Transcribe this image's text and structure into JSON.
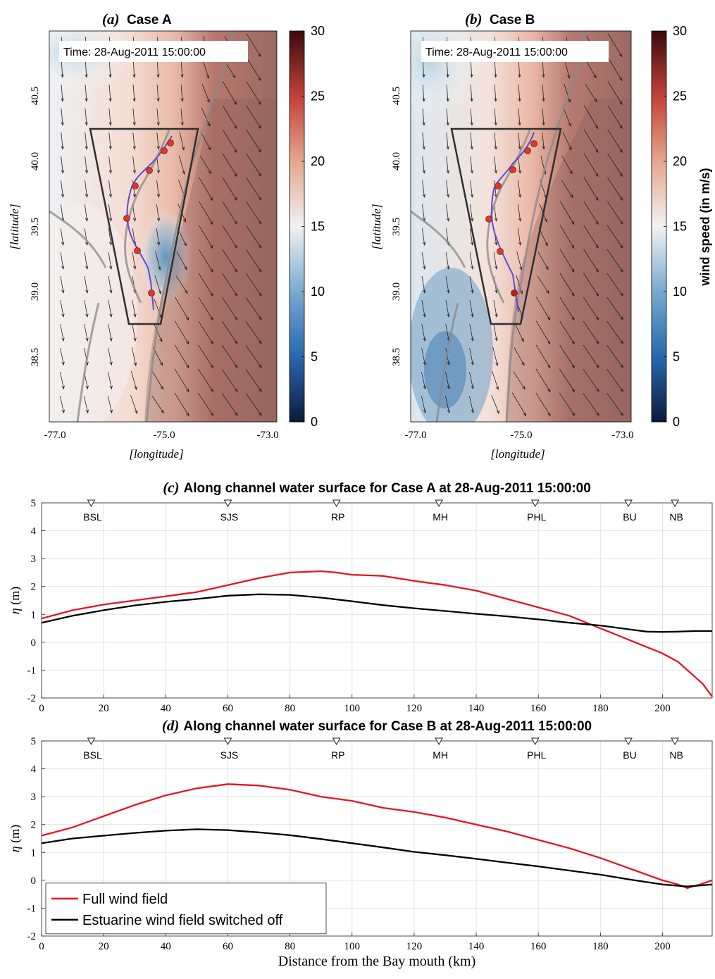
{
  "panels": {
    "a": {
      "letter": "(a)",
      "title": "Case A",
      "time": "Time: 28-Aug-2011 15:00:00"
    },
    "b": {
      "letter": "(b)",
      "title": "Case B",
      "time": "Time: 28-Aug-2011 15:00:00"
    },
    "map_xticks": [
      "-77.0",
      "-75.0",
      "-73.0"
    ],
    "map_yticks": [
      "38.5",
      "39.0",
      "39.5",
      "40.0",
      "40.5"
    ],
    "map_xlabel": "[longitude]",
    "map_ylabel": "[latitude]",
    "colorbar": {
      "label": "wind speed (in m/s)",
      "ticks": [
        "0",
        "5",
        "10",
        "15",
        "20",
        "25",
        "30"
      ]
    }
  },
  "colors": {
    "full_wind": "#e8141e",
    "estuarine_off": "#000000",
    "channel": "#5a4bd6",
    "station_dot": "#d83a2e",
    "box": "#333333"
  },
  "chart_data": [
    {
      "type": "line",
      "panel": "c",
      "letter": "(c)",
      "title": "Along channel water surface for Case A at 28-Aug-2011 15:00:00",
      "xlabel": "",
      "ylabel": "η (m)",
      "xlim": [
        0,
        216
      ],
      "ylim": [
        -2,
        5
      ],
      "xticks": [
        0,
        20,
        40,
        60,
        80,
        100,
        120,
        140,
        160,
        180,
        200
      ],
      "yticks": [
        -2,
        -1,
        0,
        1,
        2,
        3,
        4,
        5
      ],
      "grid": true,
      "stations": [
        {
          "name": "BSL",
          "x": 16
        },
        {
          "name": "SJS",
          "x": 60
        },
        {
          "name": "RP",
          "x": 95
        },
        {
          "name": "MH",
          "x": 128
        },
        {
          "name": "PHL",
          "x": 159
        },
        {
          "name": "BU",
          "x": 189
        },
        {
          "name": "NB",
          "x": 204
        }
      ],
      "series": [
        {
          "name": "Full wind field",
          "x": [
            0,
            10,
            20,
            30,
            40,
            50,
            60,
            70,
            80,
            90,
            95,
            100,
            105,
            110,
            120,
            130,
            140,
            150,
            160,
            170,
            180,
            190,
            200,
            205,
            210,
            213,
            216
          ],
          "y": [
            0.85,
            1.15,
            1.35,
            1.5,
            1.65,
            1.8,
            2.05,
            2.3,
            2.5,
            2.55,
            2.5,
            2.42,
            2.4,
            2.38,
            2.2,
            2.05,
            1.85,
            1.55,
            1.25,
            0.95,
            0.5,
            0.05,
            -0.4,
            -0.7,
            -1.2,
            -1.5,
            -1.95
          ]
        },
        {
          "name": "Estuarine wind field switched off",
          "x": [
            0,
            10,
            20,
            30,
            40,
            50,
            60,
            70,
            80,
            90,
            100,
            110,
            120,
            130,
            140,
            150,
            160,
            170,
            180,
            190,
            195,
            200,
            205,
            210,
            216
          ],
          "y": [
            0.7,
            0.95,
            1.15,
            1.32,
            1.45,
            1.55,
            1.67,
            1.72,
            1.7,
            1.6,
            1.47,
            1.33,
            1.22,
            1.12,
            1.02,
            0.93,
            0.82,
            0.7,
            0.6,
            0.45,
            0.38,
            0.37,
            0.38,
            0.4,
            0.4
          ]
        }
      ]
    },
    {
      "type": "line",
      "panel": "d",
      "letter": "(d)",
      "title": "Along channel water surface for Case B at 28-Aug-2011 15:00:00",
      "xlabel": "Distance from the Bay mouth (km)",
      "ylabel": "η (m)",
      "xlim": [
        0,
        216
      ],
      "ylim": [
        -2,
        5
      ],
      "xticks": [
        0,
        20,
        40,
        60,
        80,
        100,
        120,
        140,
        160,
        180,
        200
      ],
      "yticks": [
        -2,
        -1,
        0,
        1,
        2,
        3,
        4,
        5
      ],
      "grid": true,
      "legend": "lower-left",
      "stations": [
        {
          "name": "BSL",
          "x": 16
        },
        {
          "name": "SJS",
          "x": 60
        },
        {
          "name": "RP",
          "x": 95
        },
        {
          "name": "MH",
          "x": 128
        },
        {
          "name": "PHL",
          "x": 159
        },
        {
          "name": "BU",
          "x": 189
        },
        {
          "name": "NB",
          "x": 204
        }
      ],
      "series": [
        {
          "name": "Full wind field",
          "x": [
            0,
            10,
            20,
            30,
            40,
            50,
            60,
            70,
            80,
            90,
            100,
            110,
            120,
            130,
            140,
            150,
            160,
            170,
            180,
            190,
            200,
            205,
            208,
            212,
            216
          ],
          "y": [
            1.6,
            1.9,
            2.3,
            2.7,
            3.05,
            3.3,
            3.45,
            3.4,
            3.25,
            3.0,
            2.85,
            2.6,
            2.45,
            2.25,
            2.0,
            1.75,
            1.45,
            1.15,
            0.8,
            0.4,
            0.0,
            -0.15,
            -0.28,
            -0.15,
            0.0
          ]
        },
        {
          "name": "Estuarine wind field switched off",
          "x": [
            0,
            10,
            20,
            30,
            40,
            50,
            60,
            70,
            80,
            90,
            100,
            110,
            120,
            130,
            140,
            150,
            160,
            170,
            180,
            190,
            200,
            208,
            216
          ],
          "y": [
            1.33,
            1.5,
            1.6,
            1.7,
            1.78,
            1.83,
            1.8,
            1.72,
            1.62,
            1.48,
            1.33,
            1.18,
            1.02,
            0.9,
            0.77,
            0.63,
            0.5,
            0.35,
            0.2,
            0.02,
            -0.15,
            -0.22,
            -0.15
          ]
        }
      ]
    }
  ]
}
